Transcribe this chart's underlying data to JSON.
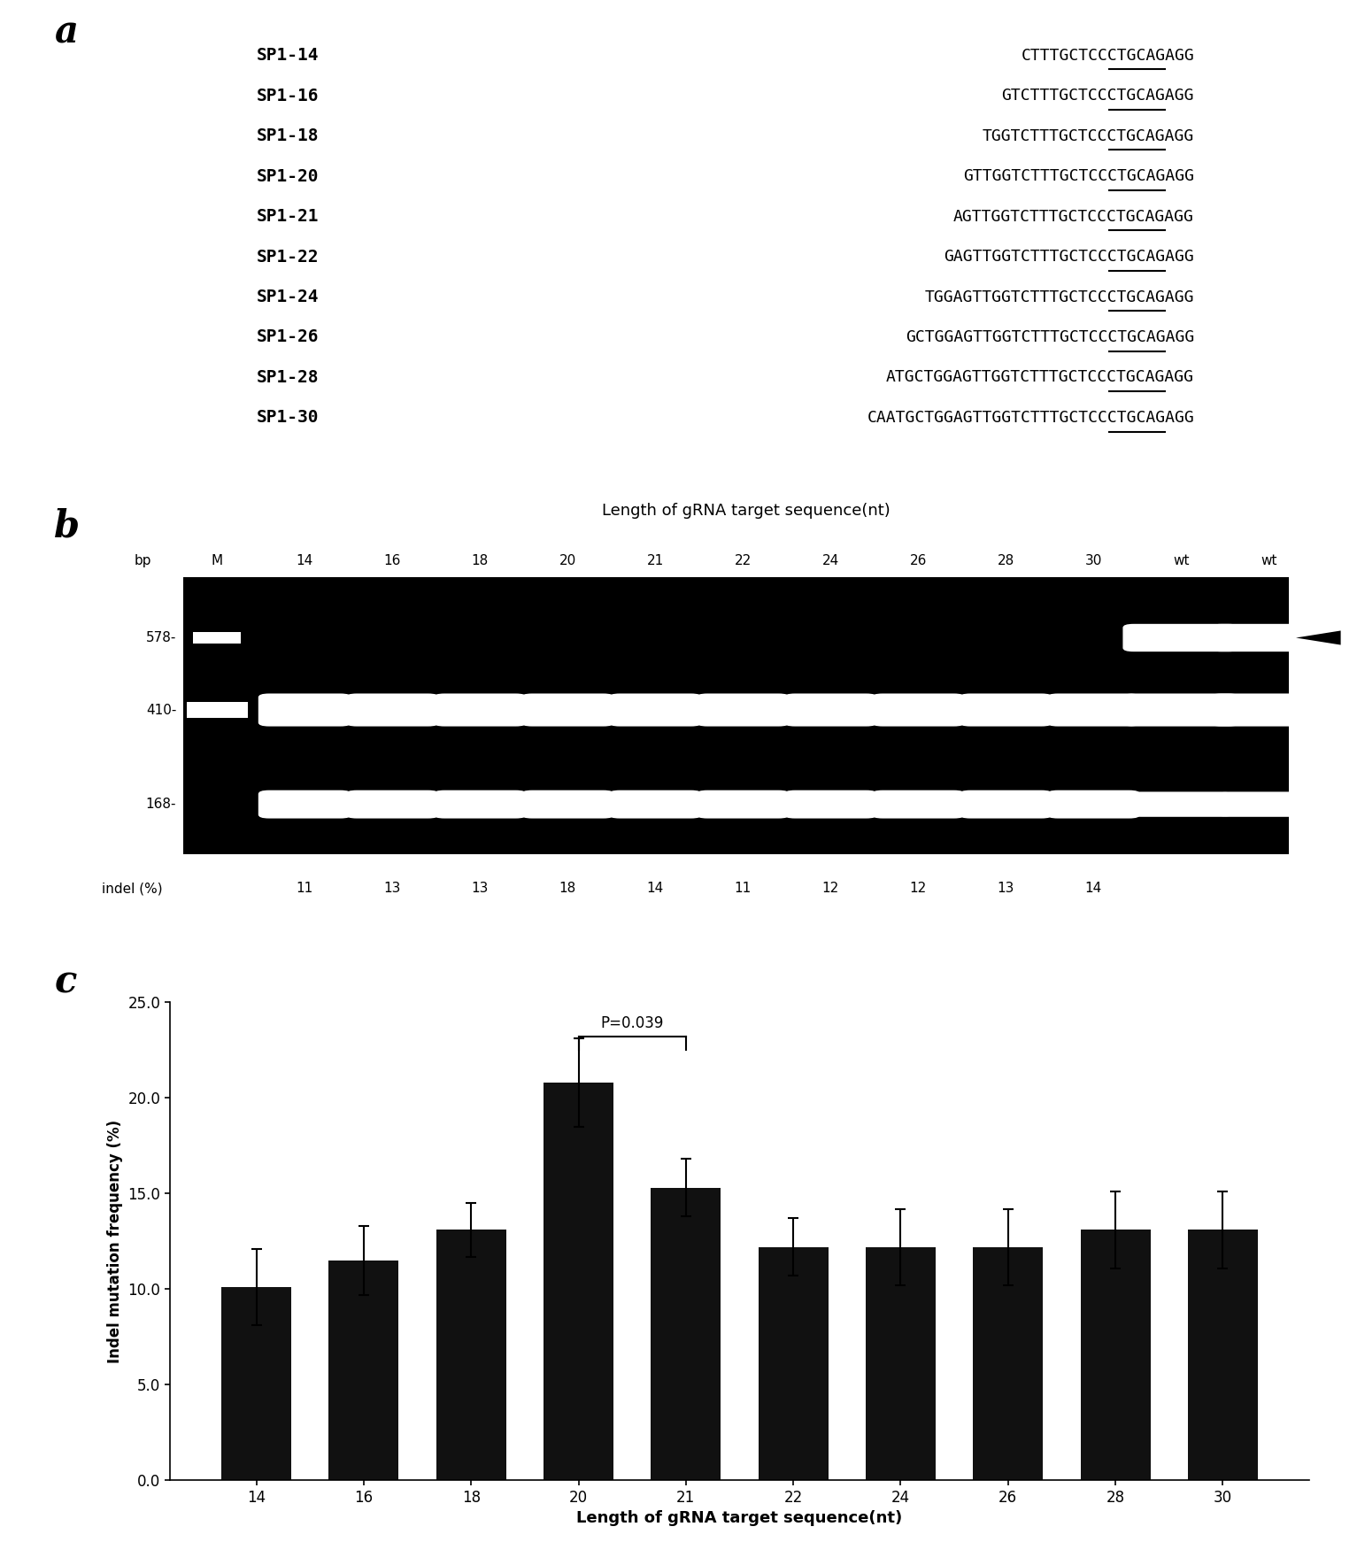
{
  "panel_a": {
    "labels": [
      "SP1-14",
      "SP1-16",
      "SP1-18",
      "SP1-20",
      "SP1-21",
      "SP1-22",
      "SP1-24",
      "SP1-26",
      "SP1-28",
      "SP1-30"
    ],
    "seq_parts": [
      [
        "CTTTGCTCC",
        "CTGCAG",
        "AGG"
      ],
      [
        "GTCTTTGCTCC",
        "CTGCAG",
        "AGG"
      ],
      [
        "TGGTCTTTGCTCC",
        "CTGCAG",
        "AGG"
      ],
      [
        "GTTGGTCTTTGCTCC",
        "CTGCAG",
        "AGG"
      ],
      [
        "AGTTGGTCTTTGCTCC",
        "CTGCAG",
        "AGG"
      ],
      [
        "GAGTTGGTCTTTGCTCC",
        "CTGCAG",
        "AGG"
      ],
      [
        "TGGAGTTGGTCTTTGCTCC",
        "CTGCAG",
        "AGG"
      ],
      [
        "GCTGGAGTTGGTCTTTGCTCC",
        "CTGCAG",
        "AGG"
      ],
      [
        "ATGCTGGAGTTGGTCTTTGCTCC",
        "CTGCAG",
        "AGG"
      ],
      [
        "CAATGCTGGAGTTGGTCTTTGCTCC",
        "CTGCAG",
        "AGG"
      ]
    ]
  },
  "panel_b": {
    "title": "Length of gRNA target sequence(nt)",
    "lane_labels": [
      "M",
      "14",
      "16",
      "18",
      "20",
      "21",
      "22",
      "24",
      "26",
      "28",
      "30",
      "wt",
      "wt"
    ],
    "bp_labels": [
      "578",
      "410",
      "168"
    ],
    "indel_values": [
      "11",
      "13",
      "13",
      "18",
      "14",
      "11",
      "12",
      "12",
      "13",
      "14"
    ]
  },
  "panel_c": {
    "categories": [
      "14",
      "16",
      "18",
      "20",
      "21",
      "22",
      "24",
      "26",
      "28",
      "30"
    ],
    "values": [
      10.1,
      11.5,
      13.1,
      20.8,
      15.3,
      12.2,
      12.2,
      12.2,
      13.1,
      13.1
    ],
    "errors": [
      2.0,
      1.8,
      1.4,
      2.3,
      1.5,
      1.5,
      2.0,
      2.0,
      2.0,
      2.0
    ],
    "bar_color": "#111111",
    "xlabel": "Length of gRNA target sequence(nt)",
    "ylabel": "Indel mutation frequency (%)",
    "ylim": [
      0,
      25.0
    ],
    "yticks": [
      0.0,
      5.0,
      10.0,
      15.0,
      20.0,
      25.0
    ],
    "pvalue_text": "P=0.039"
  }
}
